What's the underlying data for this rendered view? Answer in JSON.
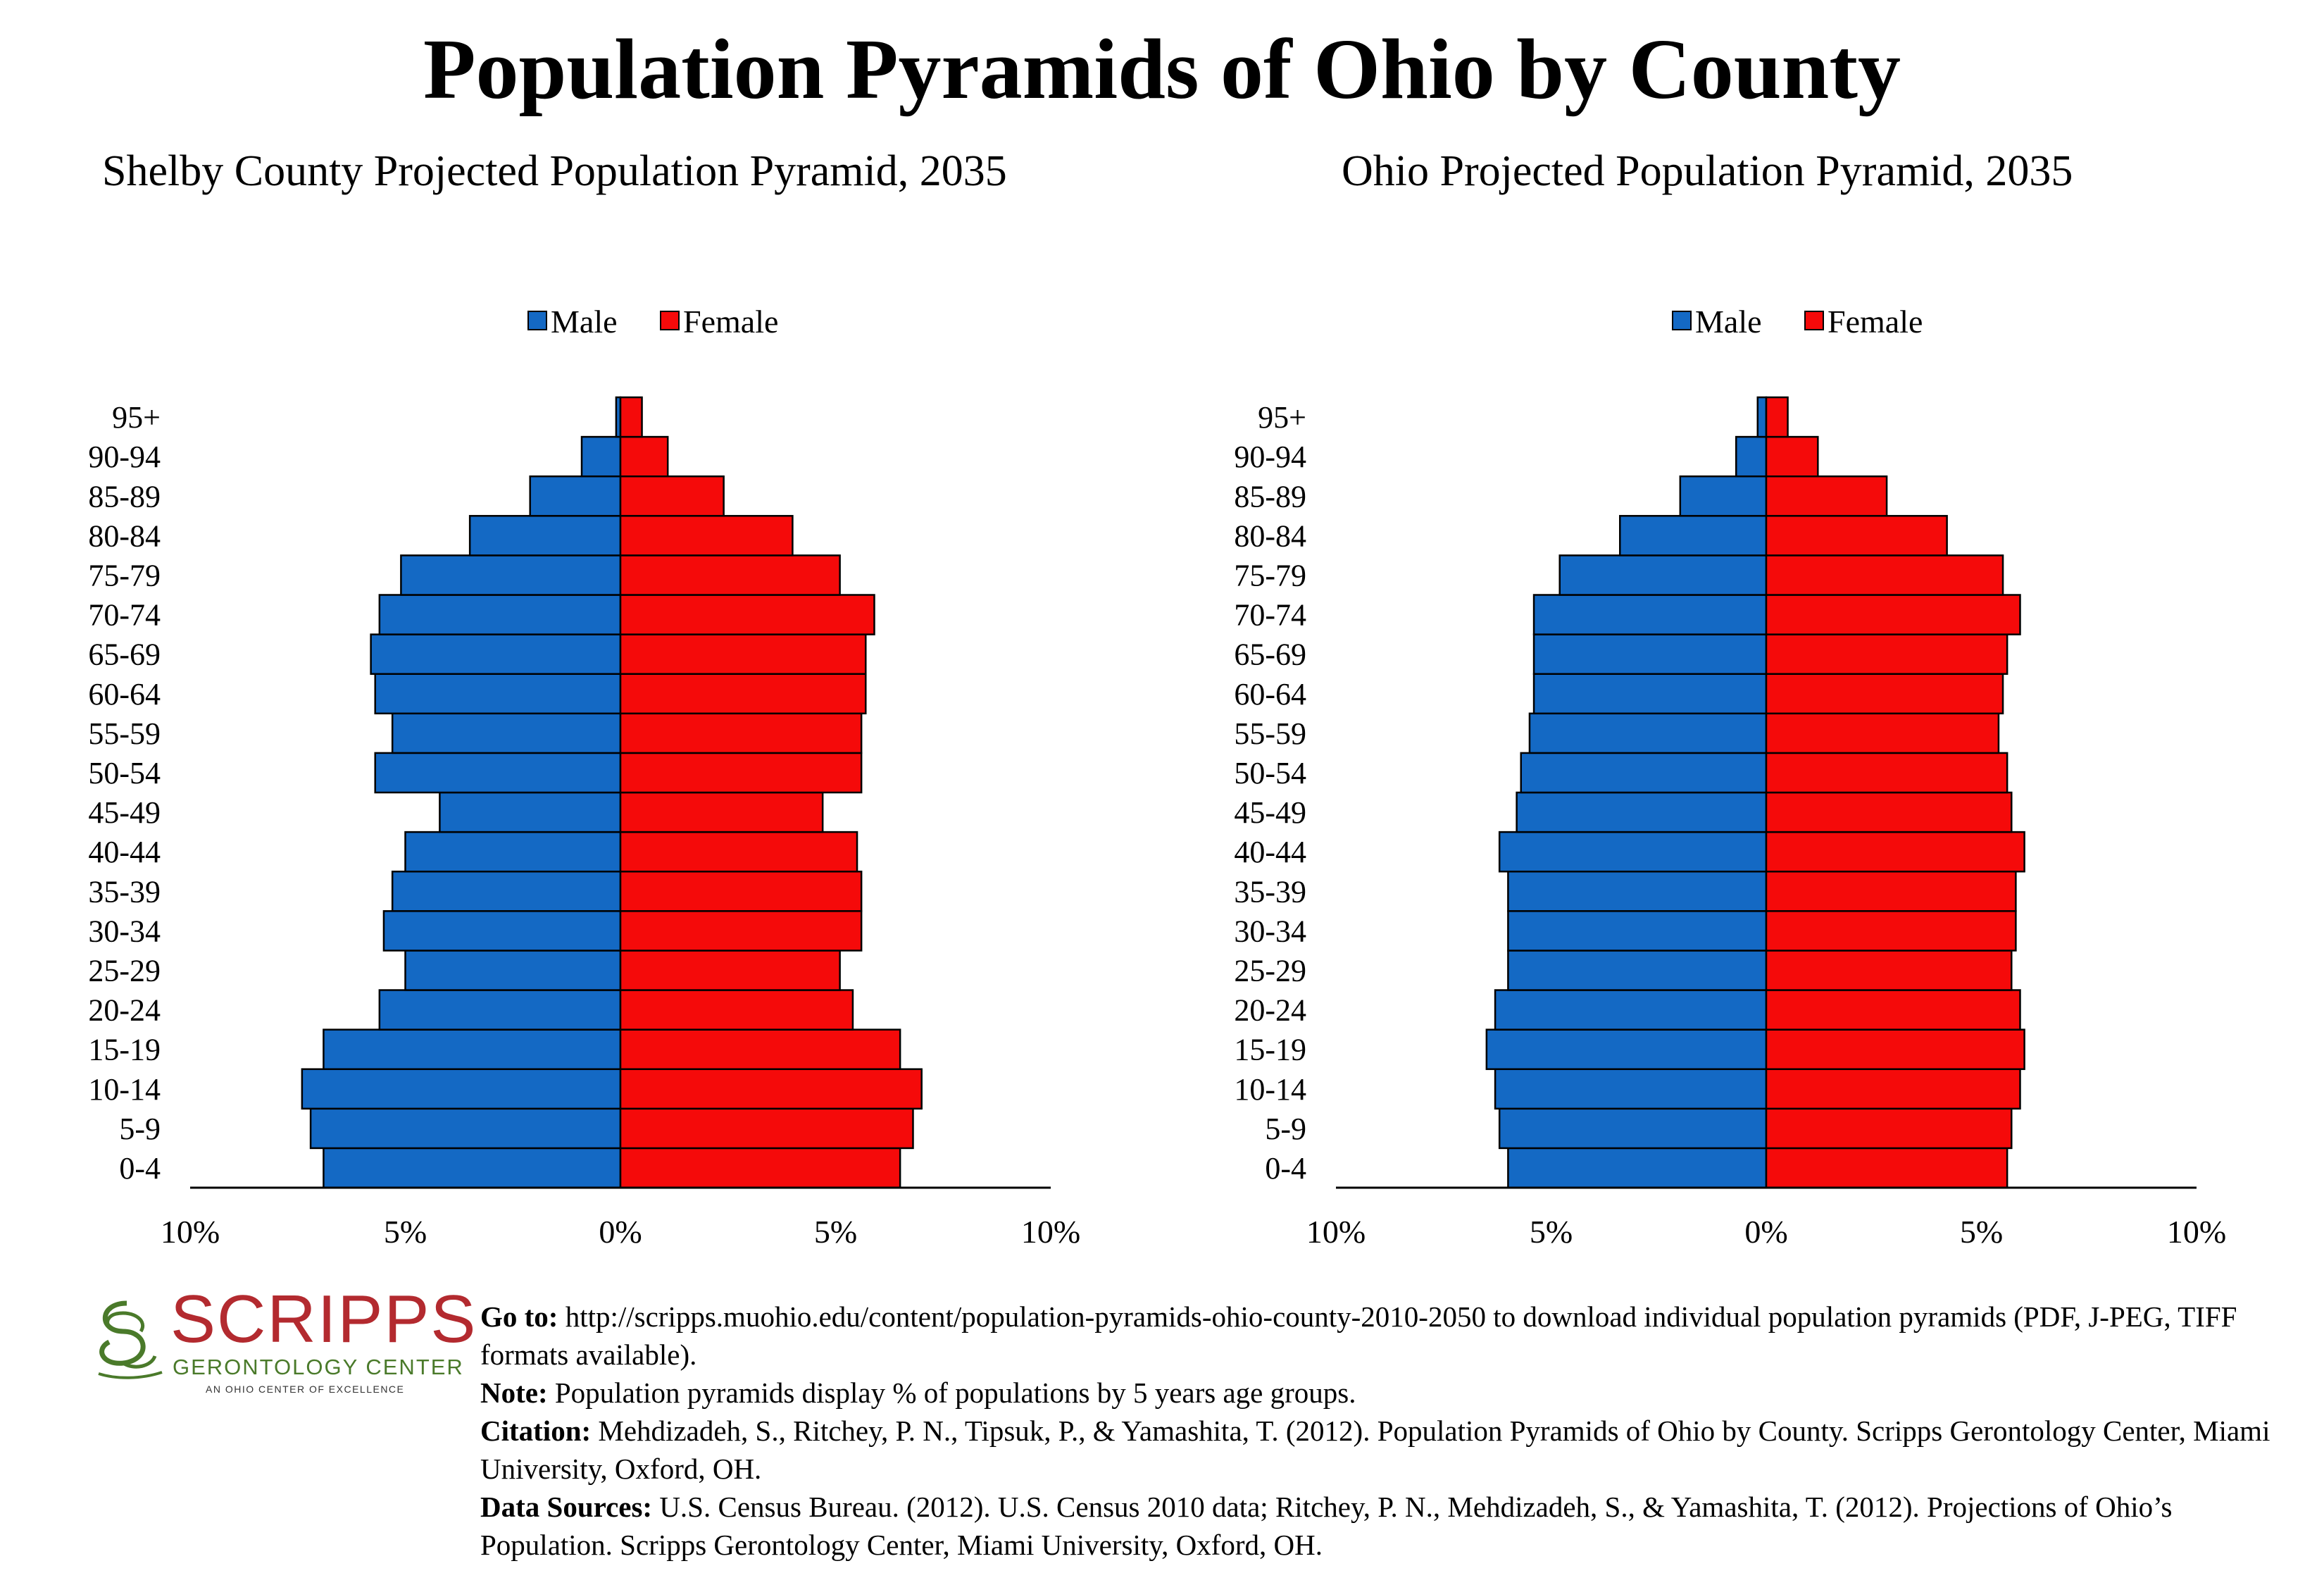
{
  "title": "Population Pyramids of Ohio by County",
  "colors": {
    "male": "#1469c4",
    "female": "#f50a0a",
    "logo_red": "#b32a2f",
    "logo_green": "#4a7a2a"
  },
  "chart_data": [
    {
      "type": "bar",
      "orientation": "horizontal-pyramid",
      "title": "Shelby County Projected Population Pyramid, 2035",
      "legend": [
        "Male",
        "Female"
      ],
      "legend_position": "top",
      "categories": [
        "0-4",
        "5-9",
        "10-14",
        "15-19",
        "20-24",
        "25-29",
        "30-34",
        "35-39",
        "40-44",
        "45-49",
        "50-54",
        "55-59",
        "60-64",
        "65-69",
        "70-74",
        "75-79",
        "80-84",
        "85-89",
        "90-94",
        "95+"
      ],
      "series": [
        {
          "name": "Male",
          "values": [
            6.9,
            7.2,
            7.4,
            6.9,
            5.6,
            5.0,
            5.5,
            5.3,
            5.0,
            4.2,
            5.7,
            5.3,
            5.7,
            5.8,
            5.6,
            5.1,
            3.5,
            2.1,
            0.9,
            0.1
          ]
        },
        {
          "name": "Female",
          "values": [
            6.5,
            6.8,
            7.0,
            6.5,
            5.4,
            5.1,
            5.6,
            5.6,
            5.5,
            4.7,
            5.6,
            5.6,
            5.7,
            5.7,
            5.9,
            5.1,
            4.0,
            2.4,
            1.1,
            0.5
          ]
        }
      ],
      "xlim": [
        -10,
        10
      ],
      "xticks": [
        "10%",
        "5%",
        "0%",
        "5%",
        "10%"
      ]
    },
    {
      "type": "bar",
      "orientation": "horizontal-pyramid",
      "title": "Ohio Projected Population Pyramid, 2035",
      "legend": [
        "Male",
        "Female"
      ],
      "legend_position": "top",
      "categories": [
        "0-4",
        "5-9",
        "10-14",
        "15-19",
        "20-24",
        "25-29",
        "30-34",
        "35-39",
        "40-44",
        "45-49",
        "50-54",
        "55-59",
        "60-64",
        "65-69",
        "70-74",
        "75-79",
        "80-84",
        "85-89",
        "90-94",
        "95+"
      ],
      "series": [
        {
          "name": "Male",
          "values": [
            6.0,
            6.2,
            6.3,
            6.5,
            6.3,
            6.0,
            6.0,
            6.0,
            6.2,
            5.8,
            5.7,
            5.5,
            5.4,
            5.4,
            5.4,
            4.8,
            3.4,
            2.0,
            0.7,
            0.2
          ]
        },
        {
          "name": "Female",
          "values": [
            5.6,
            5.7,
            5.9,
            6.0,
            5.9,
            5.7,
            5.8,
            5.8,
            6.0,
            5.7,
            5.6,
            5.4,
            5.5,
            5.6,
            5.9,
            5.5,
            4.2,
            2.8,
            1.2,
            0.5
          ]
        }
      ],
      "xlim": [
        -10,
        10
      ],
      "xticks": [
        "10%",
        "5%",
        "0%",
        "5%",
        "10%"
      ]
    }
  ],
  "footer": {
    "goto_label": "Go to:",
    "goto_text": " http://scripps.muohio.edu/content/population-pyramids-ohio-county-2010-2050 to download individual population pyramids (PDF, J-PEG, TIFF formats available).",
    "note_label": "Note:",
    "note_text": " Population pyramids display % of populations by 5 years age groups.",
    "citation_label": "Citation:",
    "citation_text": " Mehdizadeh, S., Ritchey, P. N., Tipsuk, P., & Yamashita, T. (2012). Population Pyramids of Ohio by County. Scripps Gerontology Center, Miami University, Oxford, OH.",
    "sources_label": "Data Sources:",
    "sources_text": " U.S. Census Bureau. (2012). U.S. Census 2010 data; Ritchey, P. N., Mehdizadeh, S., & Yamashita, T. (2012). Projections of Ohio’s Population. Scripps Gerontology Center, Miami University, Oxford, OH."
  },
  "logo": {
    "word": "SCRIPPS",
    "sub": "GERONTOLOGY CENTER",
    "tag": "AN OHIO CENTER OF EXCELLENCE"
  }
}
